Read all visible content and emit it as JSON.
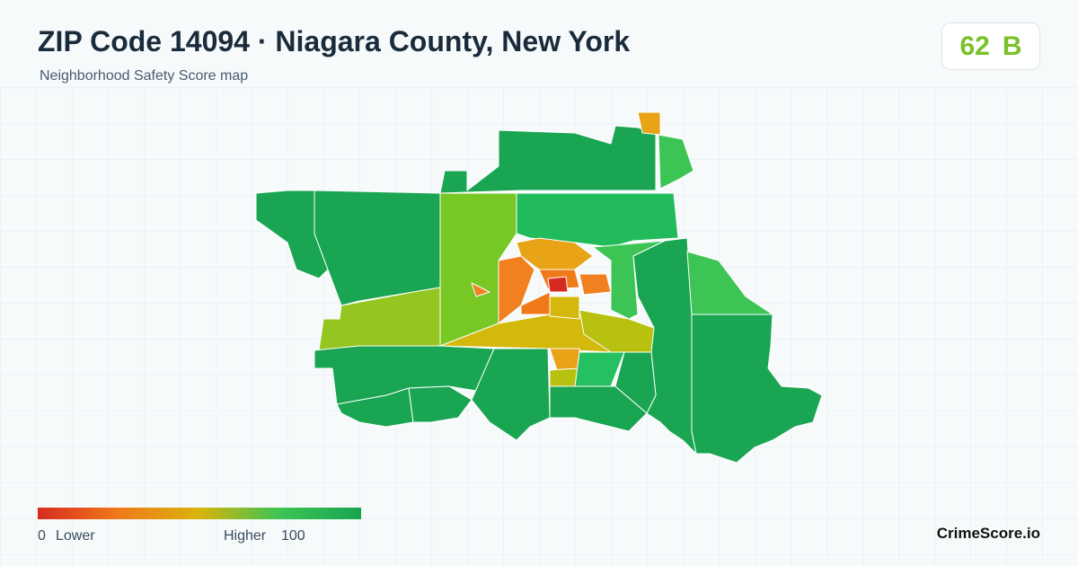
{
  "header": {
    "title": "ZIP Code 14094 · Niagara County, New York",
    "subtitle": "Neighborhood Safety Score map"
  },
  "score": {
    "value": "62",
    "grade": "B"
  },
  "legend": {
    "min": "0",
    "min_label": "Lower",
    "max_label": "Higher",
    "max": "100"
  },
  "brand": "CrimeScore.io"
}
